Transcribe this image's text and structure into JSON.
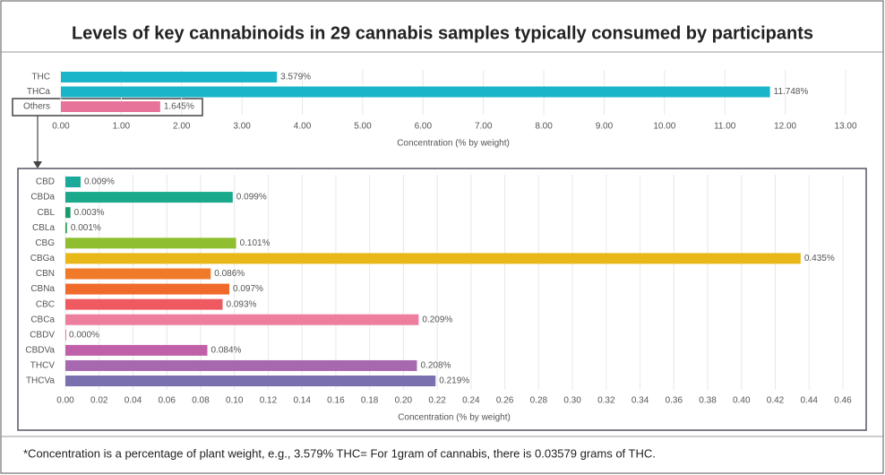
{
  "title": "Levels of key cannabinoids in 29 cannabis samples typically consumed by participants",
  "footnote": "*Concentration is a percentage of plant weight, e.g., 3.579% THC= For 1gram of cannabis, there is  0.03579 grams of THC.",
  "chart_data": [
    {
      "type": "bar",
      "orientation": "horizontal",
      "xlabel": "Concentration (% by weight)",
      "categories": [
        "THC",
        "THCa",
        "Others"
      ],
      "values": [
        3.579,
        11.748,
        1.645
      ],
      "value_labels": [
        "3.579%",
        "11.748%",
        "1.645%"
      ],
      "colors": [
        "#1ab5c8",
        "#1ab5c8",
        "#e8739a"
      ],
      "xlim": [
        0,
        13
      ],
      "xticks": [
        {
          "value": 0,
          "label": "0.00"
        },
        {
          "value": 1,
          "label": "1.00"
        },
        {
          "value": 2,
          "label": "2.00"
        },
        {
          "value": 3,
          "label": "3.00"
        },
        {
          "value": 4,
          "label": "4.00"
        },
        {
          "value": 5,
          "label": "5.00"
        },
        {
          "value": 6,
          "label": "6.00"
        },
        {
          "value": 7,
          "label": "7.00"
        },
        {
          "value": 8,
          "label": "8.00"
        },
        {
          "value": 9,
          "label": "9.00"
        },
        {
          "value": 10,
          "label": "10.00"
        },
        {
          "value": 11,
          "label": "11.00"
        },
        {
          "value": 12,
          "label": "12.00"
        },
        {
          "value": 13,
          "label": "13.00"
        }
      ],
      "grid": true
    },
    {
      "type": "bar",
      "orientation": "horizontal",
      "xlabel": "Concentration (% by weight)",
      "categories": [
        "CBD",
        "CBDa",
        "CBL",
        "CBLa",
        "CBG",
        "CBGa",
        "CBN",
        "CBNa",
        "CBC",
        "CBCa",
        "CBDV",
        "CBDVa",
        "THCV",
        "THCVa"
      ],
      "values": [
        0.009,
        0.099,
        0.003,
        0.001,
        0.101,
        0.435,
        0.086,
        0.097,
        0.093,
        0.209,
        0,
        0.084,
        0.208,
        0.219
      ],
      "value_labels": [
        "0.009%",
        "0.099%",
        "0.003%",
        "0.001%",
        "0.101%",
        "0.435%",
        "0.086%",
        "0.097%",
        "0.093%",
        "0.209%",
        "0.000%",
        "0.084%",
        "0.208%",
        "0.219%"
      ],
      "colors": [
        "#1aa99a",
        "#1aa98a",
        "#1a9a6a",
        "#3aa860",
        "#8fbf30",
        "#e8b818",
        "#f07a2a",
        "#f06a2a",
        "#ee5a60",
        "#ee7e9e",
        "#e06090",
        "#c060a8",
        "#a868b0",
        "#7a70b0"
      ],
      "xlim": [
        0,
        0.46
      ],
      "xticks": [
        {
          "value": 0,
          "label": "0.00"
        },
        0.02,
        0.04,
        0.06,
        0.08,
        {
          "value": 0.1,
          "label": "0.10"
        },
        0.12,
        0.14,
        0.16,
        0.18,
        {
          "value": 0.2,
          "label": "0.20"
        },
        0.22,
        0.24,
        0.26,
        0.28,
        {
          "value": 0.3,
          "label": "0.30"
        },
        0.32,
        0.34,
        0.36,
        0.38,
        {
          "value": 0.4,
          "label": "0.40"
        },
        0.42,
        0.44,
        0.46
      ],
      "grid": true
    }
  ]
}
